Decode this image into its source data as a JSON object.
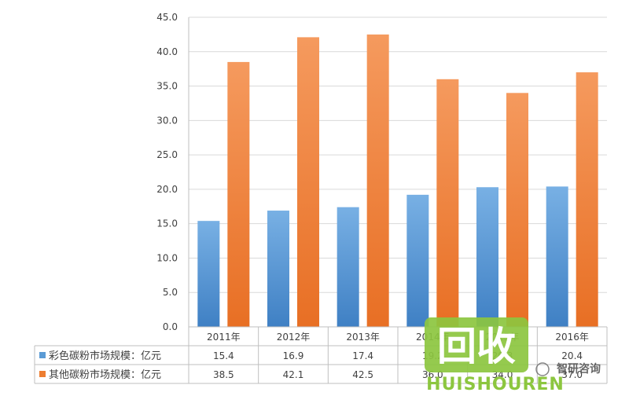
{
  "chart_data": {
    "type": "bar",
    "categories": [
      "2011年",
      "2012年",
      "2013年",
      "2014年",
      "2015年",
      "2016年"
    ],
    "series": [
      {
        "name": "彩色碳粉市场规模：亿元",
        "values": [
          15.4,
          16.9,
          17.4,
          19.2,
          20.3,
          20.4
        ],
        "color": "#5b9bd5"
      },
      {
        "name": "其他碳粉市场规模：亿元",
        "values": [
          38.5,
          42.1,
          42.5,
          36.0,
          34.0,
          37.0
        ],
        "color": "#ed7d31"
      }
    ],
    "ylim": [
      0,
      45
    ],
    "yticks": [
      "0.0",
      "5.0",
      "10.0",
      "15.0",
      "20.0",
      "25.0",
      "30.0",
      "35.0",
      "40.0",
      "45.0"
    ],
    "grid": true,
    "legend": "data-table-below"
  },
  "watermark": {
    "logo_text": "回收",
    "brand_text": "HUISHOUREN",
    "source_text": "智研咨询"
  },
  "colors": {
    "axis": "#bfbfbf",
    "grid": "#d9d9d9",
    "text": "#404040",
    "logo_green": "#8cc63f"
  }
}
